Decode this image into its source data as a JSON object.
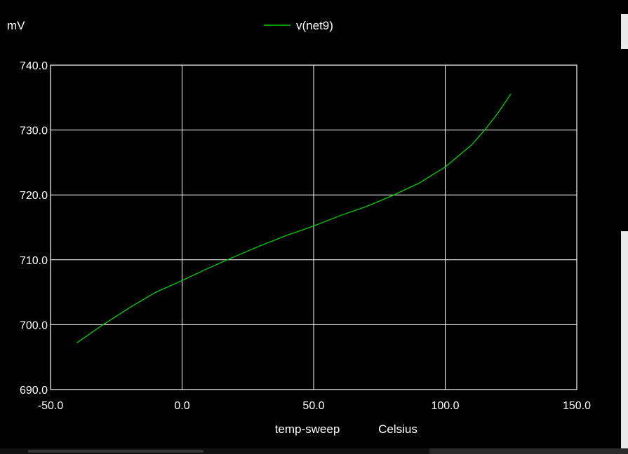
{
  "chart_data": {
    "type": "line",
    "y_unit_label": "mV",
    "xlabel": "temp-sweep",
    "x_unit_label": "Celsius",
    "xlim": [
      -50,
      150
    ],
    "ylim": [
      690,
      740
    ],
    "x_ticks": [
      "-50.0",
      "0.0",
      "50.0",
      "100.0",
      "150.0"
    ],
    "y_ticks": [
      "690.0",
      "700.0",
      "710.0",
      "720.0",
      "730.0",
      "740.0"
    ],
    "grid": true,
    "legend_position": "top-center",
    "background_color": "#000000",
    "grid_color": "#ffffff",
    "series": [
      {
        "name": "v(net9)",
        "color": "#00cc00",
        "x": [
          -40,
          -30,
          -20,
          -10,
          0,
          10,
          20,
          30,
          40,
          50,
          60,
          70,
          80,
          90,
          100,
          110,
          115,
          120,
          125
        ],
        "y": [
          697.2,
          700.0,
          702.6,
          705.0,
          706.8,
          708.7,
          710.5,
          712.2,
          713.8,
          715.2,
          716.8,
          718.2,
          719.9,
          721.8,
          724.3,
          727.7,
          730.0,
          732.6,
          735.6
        ]
      }
    ]
  }
}
